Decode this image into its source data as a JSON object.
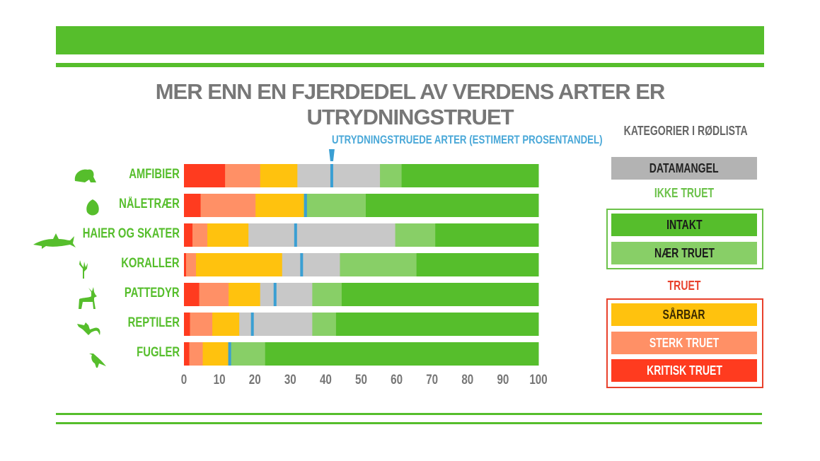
{
  "title": "MER ENN EN FJERDEDEL AV VERDENS ARTER ER UTRYDNINGSTRUET",
  "chart_data": {
    "type": "bar",
    "orientation": "horizontal-stacked",
    "title": "MER ENN EN FJERDEDEL AV VERDENS ARTER ER UTRYDNINGSTRUET",
    "annotation": "UTRYDNINGSTRUEDE ARTER (ESTIMERT PROSENTANDEL)",
    "xlim": [
      0,
      100
    ],
    "xticks": [
      "0",
      "10",
      "20",
      "30",
      "40",
      "50",
      "60",
      "70",
      "80",
      "90",
      "100"
    ],
    "categories": [
      "AMFIBIER",
      "NÅLETRÆR",
      "HAIER OG SKATER",
      "KORALLER",
      "PATTEDYR",
      "REPTILER",
      "FUGLER"
    ],
    "icons": [
      "frog-icon",
      "pinecone-icon",
      "shark-icon",
      "coral-icon",
      "deer-icon",
      "lizard-icon",
      "bird-icon"
    ],
    "series": [
      {
        "name": "KRITISK TRUET",
        "color": "#ff3b1f",
        "values": [
          11.6,
          4.7,
          2.4,
          0.6,
          4.3,
          1.7,
          1.5
        ]
      },
      {
        "name": "STERK TRUET",
        "color": "#ff9066",
        "values": [
          9.9,
          15.5,
          4.2,
          2.8,
          8.3,
          6.3,
          3.8
        ]
      },
      {
        "name": "SÅRBAR",
        "color": "#ffc20e",
        "values": [
          10.5,
          13.6,
          11.6,
          24.3,
          8.9,
          7.6,
          7.2
        ]
      },
      {
        "name": "DATAMANGEL",
        "color": "#c8c8c8",
        "values": [
          23.3,
          0,
          41.4,
          16.3,
          14.7,
          20.6,
          0
        ]
      },
      {
        "name": "NÆR TRUET",
        "color": "#88cf67",
        "values": [
          6.1,
          17.5,
          11.3,
          21.6,
          8.3,
          6.7,
          10.4
        ]
      },
      {
        "name": "INTAKT",
        "color": "#56be2c",
        "values": [
          38.6,
          48.7,
          29.1,
          34.4,
          55.5,
          57.1,
          77.1
        ]
      }
    ],
    "threatened_estimate": [
      41.7,
      34.3,
      31.5,
      33.2,
      25.7,
      19.3,
      12.9
    ],
    "marker_color": "#3a9fd3"
  },
  "legend": {
    "title": "KATEGORIER I RØDLISTA",
    "datamangel": "DATAMANGEL",
    "ikke_truet": "IKKE TRUET",
    "intakt": "INTAKT",
    "naer_truet": "NÆR TRUET",
    "truet": "TRUET",
    "sarbar": "SÅRBAR",
    "sterk_truet": "STERK TRUET",
    "kritisk_truet": "KRITISK TRUET"
  }
}
